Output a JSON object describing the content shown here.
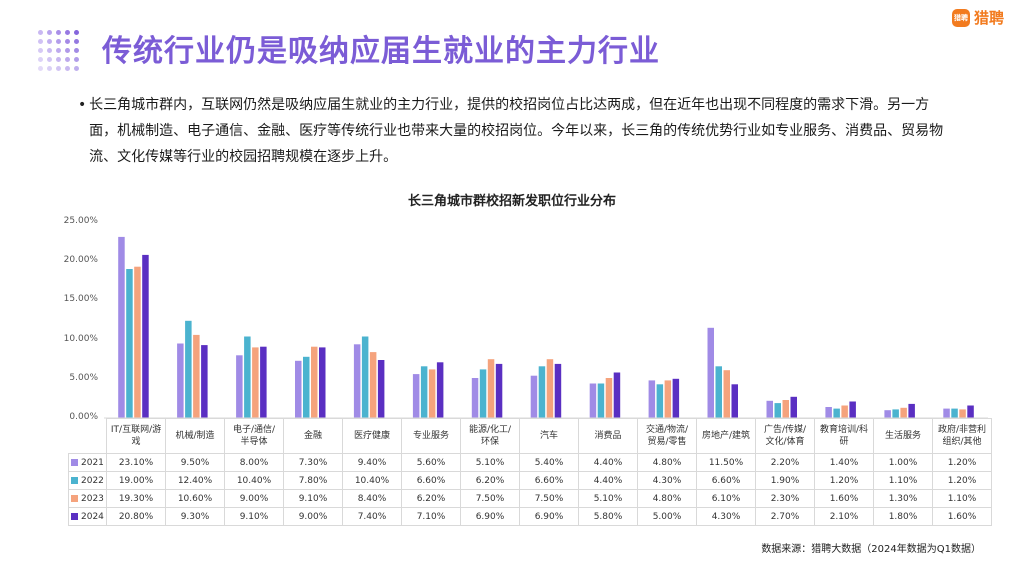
{
  "header": {
    "title": "传统行业仍是吸纳应届生就业的主力行业",
    "brand_name": "猎聘",
    "brand_badge": "猎聘"
  },
  "body": {
    "bullet": "•",
    "paragraph": "长三角城市群内，互联网仍然是吸纳应届生就业的主力行业，提供的校招岗位占比达两成，但在近年也出现不同程度的需求下滑。另一方面，机械制造、电子通信、金融、医疗等传统行业也带来大量的校招岗位。今年以来，长三角的传统优势行业如专业服务、消费品、贸易物流、文化传媒等行业的校园招聘规模在逐步上升。"
  },
  "chart_data": {
    "type": "bar",
    "title": "长三角城市群校招新发职位行业分布",
    "categories": [
      "IT/互联网/游戏",
      "机械/制造",
      "电子/通信/半导体",
      "金融",
      "医疗健康",
      "专业服务",
      "能源/化工/环保",
      "汽车",
      "消费品",
      "交通/物流/贸易/零售",
      "房地产/建筑",
      "广告/传媒/文化/体育",
      "教育培训/科研",
      "生活服务",
      "政府/非营利组织/其他"
    ],
    "category_lines": [
      [
        "IT/互联网/游",
        "戏"
      ],
      [
        "机械/制造"
      ],
      [
        "电子/通信/",
        "半导体"
      ],
      [
        "金融"
      ],
      [
        "医疗健康"
      ],
      [
        "专业服务"
      ],
      [
        "能源/化工/",
        "环保"
      ],
      [
        "汽车"
      ],
      [
        "消费品"
      ],
      [
        "交通/物流/",
        "贸易/零售"
      ],
      [
        "房地产/建筑"
      ],
      [
        "广告/传媒/",
        "文化/体育"
      ],
      [
        "教育培训/科",
        "研"
      ],
      [
        "生活服务"
      ],
      [
        "政府/非营利",
        "组织/其他"
      ]
    ],
    "series": [
      {
        "name": "2021",
        "color": "#a08be6",
        "values": [
          23.1,
          9.5,
          8.0,
          7.3,
          9.4,
          5.6,
          5.1,
          5.4,
          4.4,
          4.8,
          11.5,
          2.2,
          1.4,
          1.0,
          1.2
        ],
        "labels": [
          "23.10%",
          "9.50%",
          "8.00%",
          "7.30%",
          "9.40%",
          "5.60%",
          "5.10%",
          "5.40%",
          "4.40%",
          "4.80%",
          "11.50%",
          "2.20%",
          "1.40%",
          "1.00%",
          "1.20%"
        ]
      },
      {
        "name": "2022",
        "color": "#4bb3cf",
        "values": [
          19.0,
          12.4,
          10.4,
          7.8,
          10.4,
          6.6,
          6.2,
          6.6,
          4.4,
          4.3,
          6.6,
          1.9,
          1.2,
          1.1,
          1.2
        ],
        "labels": [
          "19.00%",
          "12.40%",
          "10.40%",
          "7.80%",
          "10.40%",
          "6.60%",
          "6.20%",
          "6.60%",
          "4.40%",
          "4.30%",
          "6.60%",
          "1.90%",
          "1.20%",
          "1.10%",
          "1.20%"
        ]
      },
      {
        "name": "2023",
        "color": "#f5a37d",
        "values": [
          19.3,
          10.6,
          9.0,
          9.1,
          8.4,
          6.2,
          7.5,
          7.5,
          5.1,
          4.8,
          6.1,
          2.3,
          1.6,
          1.3,
          1.1
        ],
        "labels": [
          "19.30%",
          "10.60%",
          "9.00%",
          "9.10%",
          "8.40%",
          "6.20%",
          "7.50%",
          "7.50%",
          "5.10%",
          "4.80%",
          "6.10%",
          "2.30%",
          "1.60%",
          "1.30%",
          "1.10%"
        ]
      },
      {
        "name": "2024",
        "color": "#5a2fc2",
        "values": [
          20.8,
          9.3,
          9.1,
          9.0,
          7.4,
          7.1,
          6.9,
          6.9,
          5.8,
          5.0,
          4.3,
          2.7,
          2.1,
          1.8,
          1.6
        ],
        "labels": [
          "20.80%",
          "9.30%",
          "9.10%",
          "9.00%",
          "7.40%",
          "7.10%",
          "6.90%",
          "6.90%",
          "5.80%",
          "5.00%",
          "4.30%",
          "2.70%",
          "2.10%",
          "1.80%",
          "1.60%"
        ]
      }
    ],
    "y_ticks": [
      "25.00%",
      "20.00%",
      "15.00%",
      "10.00%",
      "5.00%",
      "0.00%"
    ],
    "ylim": [
      0,
      25
    ],
    "grid": false,
    "legend": "table-left"
  },
  "footer": {
    "source": "数据来源：猎聘大数据（2024年数据为Q1数据）"
  }
}
